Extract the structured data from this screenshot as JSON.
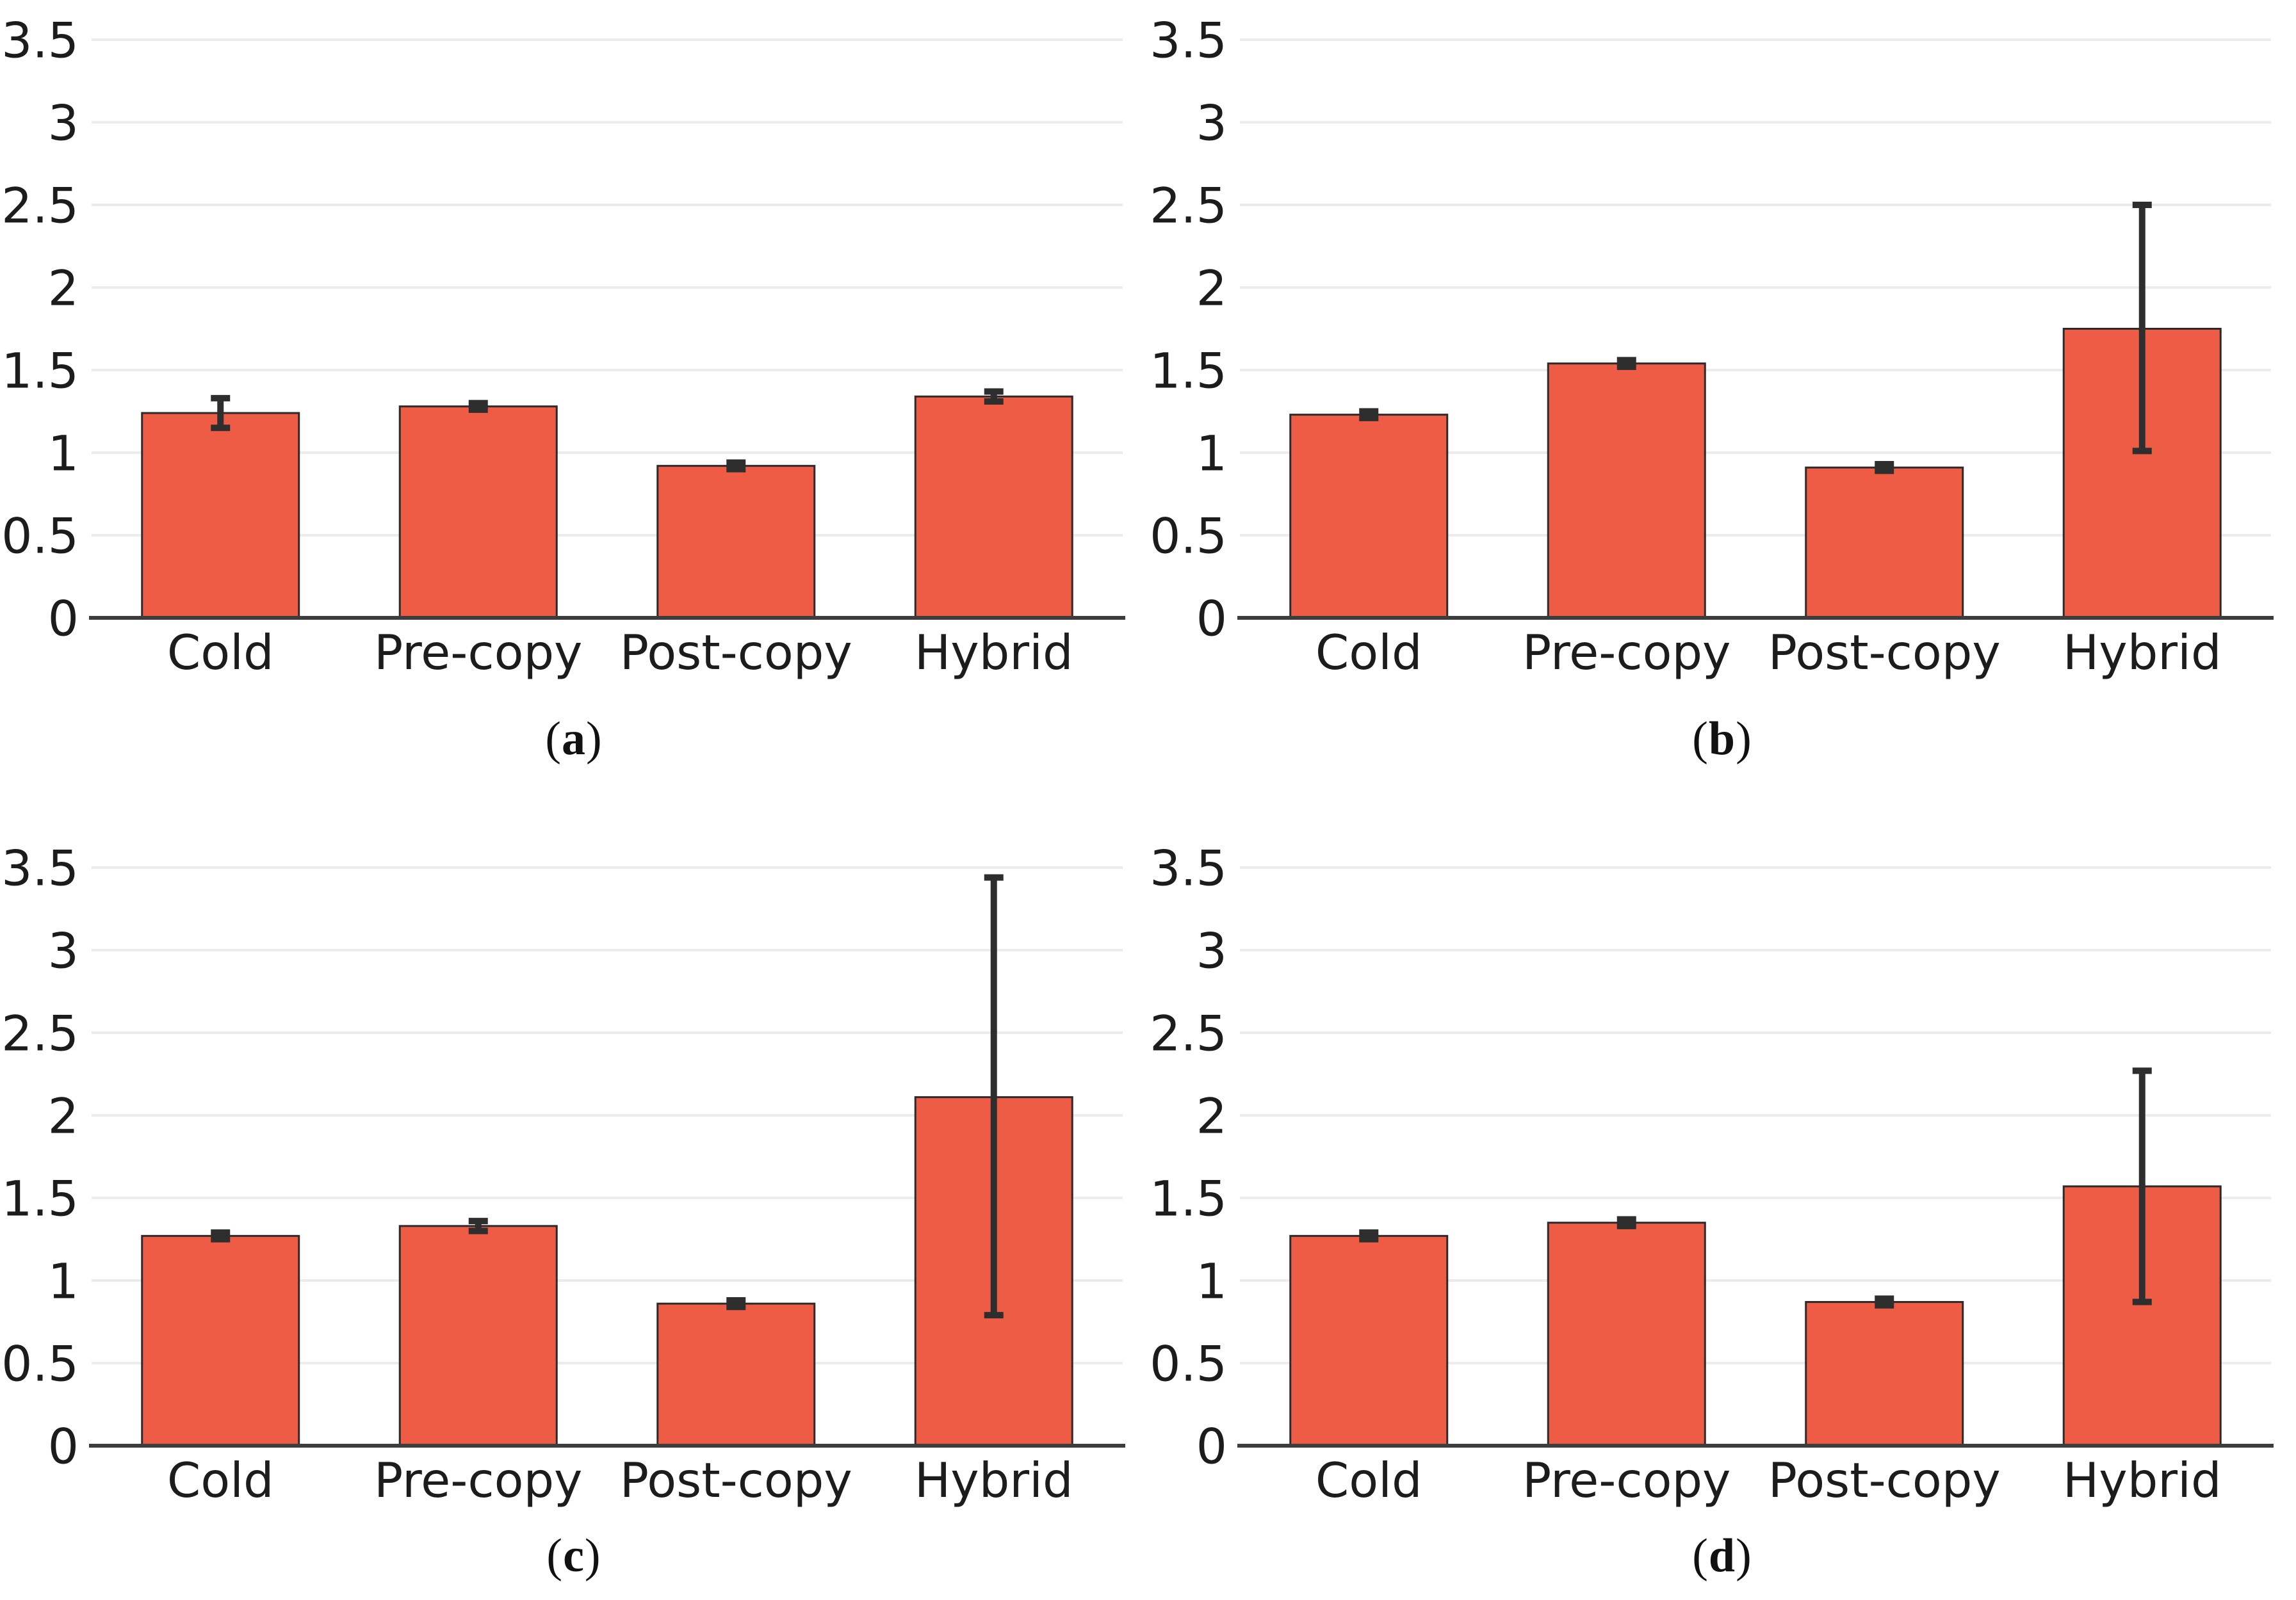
{
  "style": {
    "bar_fill": "#EF5C45",
    "bar_edge": "#2B2B2B",
    "error_color": "#2E2E2E",
    "grid_color": "#ECECEC",
    "axis_color": "#3D3D3D",
    "text_color": "#1C1C1C"
  },
  "axis": {
    "yticks": [
      {
        "value": 0,
        "label": "0"
      },
      {
        "value": 0.5,
        "label": "0.5"
      },
      {
        "value": 1,
        "label": "1"
      },
      {
        "value": 1.5,
        "label": "1.5"
      },
      {
        "value": 2,
        "label": "2"
      },
      {
        "value": 2.5,
        "label": "2.5"
      },
      {
        "value": 3,
        "label": "3"
      },
      {
        "value": 3.5,
        "label": "3.5"
      }
    ]
  },
  "chart_data": [
    {
      "type": "bar",
      "panel": "a",
      "title": "",
      "xlabel": "",
      "ylabel": "",
      "ylim": [
        0,
        3.5
      ],
      "grid": true,
      "legend": false,
      "categories": [
        "Cold",
        "Pre-copy",
        "Post-copy",
        "Hybrid"
      ],
      "values": [
        1.24,
        1.28,
        0.92,
        1.34
      ],
      "err_low": [
        1.15,
        1.26,
        0.9,
        1.31
      ],
      "err_high": [
        1.33,
        1.3,
        0.94,
        1.37
      ],
      "caption": {
        "open": "(",
        "letter": "a",
        "close": ")"
      }
    },
    {
      "type": "bar",
      "panel": "b",
      "title": "",
      "xlabel": "",
      "ylabel": "",
      "ylim": [
        0,
        3.5
      ],
      "grid": true,
      "legend": false,
      "categories": [
        "Cold",
        "Pre-copy",
        "Post-copy",
        "Hybrid"
      ],
      "values": [
        1.23,
        1.54,
        0.91,
        1.75
      ],
      "err_low": [
        1.21,
        1.52,
        0.89,
        1.01
      ],
      "err_high": [
        1.25,
        1.56,
        0.93,
        2.5
      ],
      "caption": {
        "open": "(",
        "letter": "b",
        "close": ")"
      }
    },
    {
      "type": "bar",
      "panel": "c",
      "title": "",
      "xlabel": "",
      "ylabel": "",
      "ylim": [
        0,
        3.5
      ],
      "grid": true,
      "legend": false,
      "categories": [
        "Cold",
        "Pre-copy",
        "Post-copy",
        "Hybrid"
      ],
      "values": [
        1.27,
        1.33,
        0.86,
        2.11
      ],
      "err_low": [
        1.25,
        1.3,
        0.84,
        0.79
      ],
      "err_high": [
        1.29,
        1.36,
        0.88,
        3.44
      ],
      "caption": {
        "open": "(",
        "letter": "c",
        "close": ")"
      }
    },
    {
      "type": "bar",
      "panel": "d",
      "title": "",
      "xlabel": "",
      "ylabel": "",
      "ylim": [
        0,
        3.5
      ],
      "grid": true,
      "legend": false,
      "categories": [
        "Cold",
        "Pre-copy",
        "Post-copy",
        "Hybrid"
      ],
      "values": [
        1.27,
        1.35,
        0.87,
        1.57
      ],
      "err_low": [
        1.25,
        1.33,
        0.85,
        0.87
      ],
      "err_high": [
        1.29,
        1.37,
        0.89,
        2.27
      ],
      "caption": {
        "open": "(",
        "letter": "d",
        "close": ")"
      }
    }
  ]
}
